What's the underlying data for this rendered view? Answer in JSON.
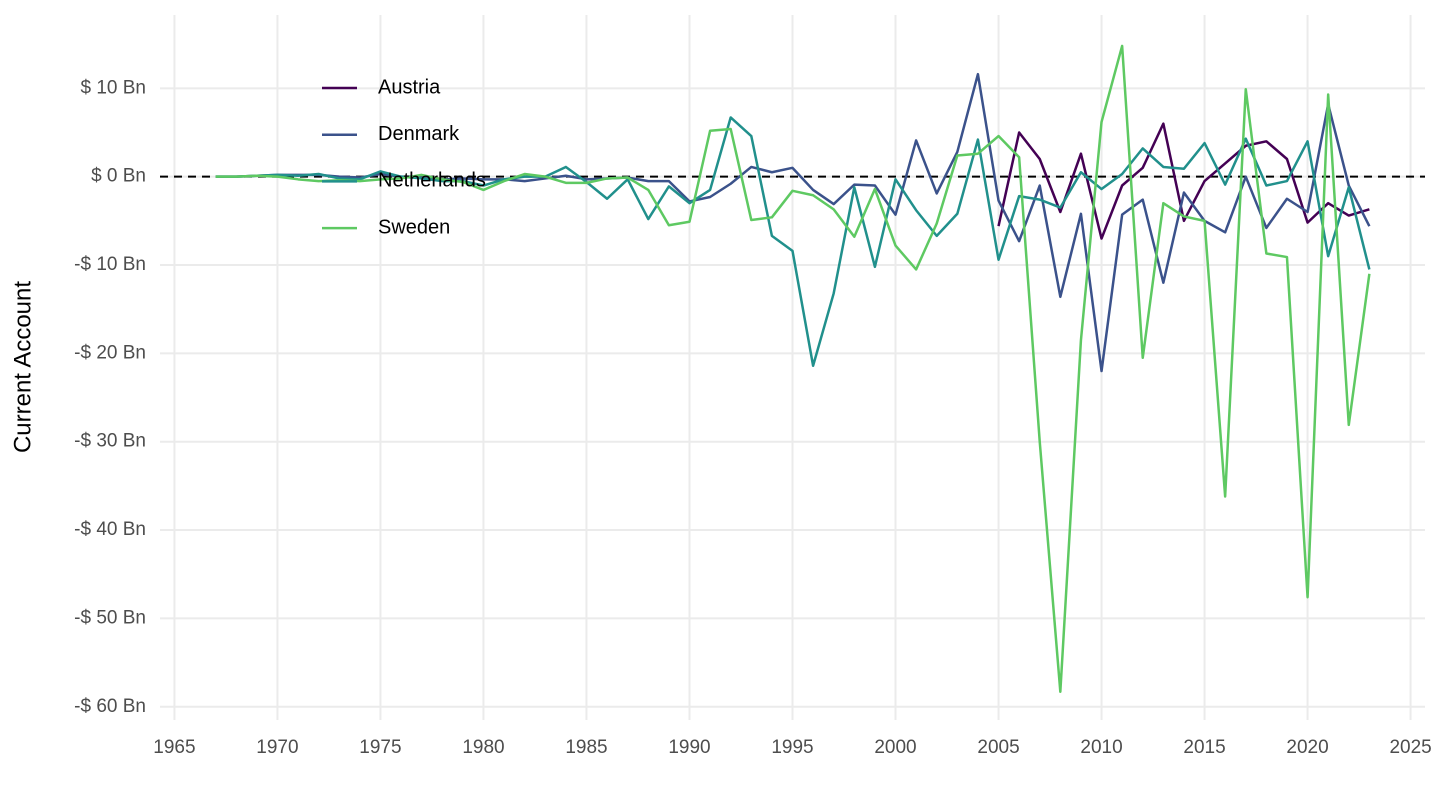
{
  "chart_data": {
    "type": "line",
    "y_axis_label": "Current Account",
    "x": [
      1967,
      1968,
      1969,
      1970,
      1971,
      1972,
      1973,
      1974,
      1975,
      1976,
      1977,
      1978,
      1979,
      1980,
      1981,
      1982,
      1983,
      1984,
      1985,
      1986,
      1987,
      1988,
      1989,
      1990,
      1991,
      1992,
      1993,
      1994,
      1995,
      1996,
      1997,
      1998,
      1999,
      2000,
      2001,
      2002,
      2003,
      2004,
      2005,
      2006,
      2007,
      2008,
      2009,
      2010,
      2011,
      2012,
      2013,
      2014,
      2015,
      2016,
      2017,
      2018,
      2019,
      2020,
      2021,
      2022,
      2023
    ],
    "series": [
      {
        "name": "Austria",
        "color": "#440154",
        "values": [
          null,
          null,
          null,
          null,
          null,
          null,
          null,
          null,
          null,
          null,
          null,
          null,
          null,
          null,
          null,
          null,
          null,
          null,
          null,
          null,
          null,
          null,
          null,
          null,
          null,
          null,
          null,
          null,
          null,
          null,
          null,
          null,
          null,
          null,
          null,
          null,
          null,
          null,
          -5.6,
          5,
          2,
          -4,
          2.6,
          -7,
          -1,
          1,
          6,
          -5,
          -0.5,
          1.5,
          3.5,
          4,
          2,
          -5.2,
          -3,
          -4.4,
          -3.7
        ]
      },
      {
        "name": "Denmark",
        "color": "#3b528b",
        "values": [
          0,
          0,
          0.1,
          0.2,
          0.2,
          0.2,
          0,
          -0.1,
          0.3,
          0,
          0,
          -0.3,
          -0.2,
          -0.3,
          -0.3,
          -0.5,
          -0.2,
          0.1,
          -0.3,
          -0.2,
          -0.1,
          -0.5,
          -0.5,
          -2.8,
          -2.3,
          -0.8,
          1.1,
          0.5,
          1,
          -1.5,
          -3.1,
          -0.9,
          -1,
          -4.3,
          4.1,
          -1.9,
          2.8,
          11.6,
          -2.7,
          -7.3,
          -1,
          -13.6,
          -4.2,
          -22,
          -4.3,
          -2.6,
          -12,
          -1.8,
          -5,
          -6.3,
          0,
          -5.8,
          -2.5,
          -4,
          8.2,
          -1,
          -5.6
        ]
      },
      {
        "name": "Netherlands",
        "color": "#21908c",
        "values": [
          0,
          0,
          0.1,
          0.2,
          0.1,
          0.3,
          -0.2,
          -0.3,
          0.6,
          0,
          -0.2,
          -0.5,
          -0.5,
          -1,
          -0.3,
          0,
          0,
          1.1,
          -0.6,
          -2.5,
          -0.3,
          -4.8,
          -1.1,
          -3,
          -1.5,
          6.7,
          4.6,
          -6.7,
          -8.4,
          -21.4,
          -13.2,
          -1.2,
          -10.2,
          -0.3,
          -3.8,
          -6.7,
          -4.2,
          4.2,
          -9.4,
          -2.2,
          -2.6,
          -3.5,
          0.5,
          -1.4,
          0.3,
          3.2,
          1.1,
          0.9,
          3.8,
          -0.9,
          4.3,
          -1,
          -0.5,
          4,
          -9,
          -1.2,
          -10.5
        ]
      },
      {
        "name": "Sweden",
        "color": "#5ec962",
        "values": [
          0,
          0,
          0.1,
          0,
          -0.3,
          -0.5,
          -0.4,
          -0.5,
          -0.3,
          -0.2,
          0.2,
          -0.3,
          -0.6,
          -1.5,
          -0.5,
          0.3,
          0,
          -0.7,
          -0.7,
          -0.2,
          -0.1,
          -1.5,
          -5.5,
          -5.1,
          5.2,
          5.4,
          -4.9,
          -4.6,
          -1.6,
          -2.1,
          -3.7,
          -6.8,
          -1.4,
          -7.8,
          -10.5,
          -5.3,
          2.4,
          2.6,
          4.6,
          2.2,
          -30,
          -58.3,
          -18.5,
          6.2,
          14.8,
          -20.5,
          -3,
          -4.5,
          -5,
          -36.2,
          9.9,
          -8.7,
          -9.1,
          -47.6,
          9.3,
          -28.1,
          -11
        ]
      }
    ],
    "xlim": [
      1964.3,
      2025.7
    ],
    "xticks": [
      1965,
      1970,
      1975,
      1980,
      1985,
      1990,
      1995,
      2000,
      2005,
      2010,
      2015,
      2020,
      2025
    ],
    "ylim": [
      -61.5,
      18.3
    ],
    "yticks": [
      {
        "value": -60,
        "label": "-$ 60 Bn"
      },
      {
        "value": -50,
        "label": "-$ 50 Bn"
      },
      {
        "value": -40,
        "label": "-$ 40 Bn"
      },
      {
        "value": -30,
        "label": "-$ 30 Bn"
      },
      {
        "value": -20,
        "label": "-$ 20 Bn"
      },
      {
        "value": -10,
        "label": "-$ 10 Bn"
      },
      {
        "value": 0,
        "label": "$ 0 Bn"
      },
      {
        "value": 10,
        "label": "$ 10 Bn"
      }
    ],
    "grid": true,
    "reference_line": {
      "y": 0,
      "style": "dashed",
      "color": "#000000"
    },
    "legend": "top-left"
  }
}
